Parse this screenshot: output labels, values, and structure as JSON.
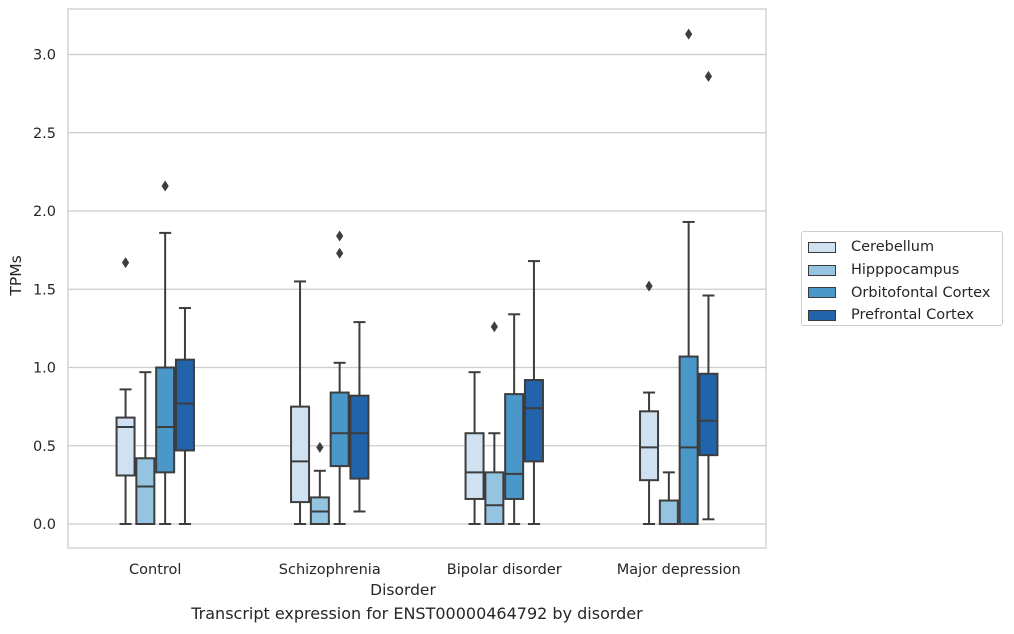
{
  "caption": "Transcript expression for ENST00000464792 by disorder",
  "chart_data": {
    "type": "box",
    "xlabel": "Disorder",
    "ylabel": "TPMs",
    "ylim": [
      -0.15,
      3.3
    ],
    "yticks": [
      "0.0",
      "0.5",
      "1.0",
      "1.5",
      "2.0",
      "2.5",
      "3.0"
    ],
    "grid": true,
    "legend_position": "right",
    "categories": [
      "Control",
      "Schizophrenia",
      "Bipolar disorder",
      "Major depression"
    ],
    "series": [
      {
        "name": "Cerebellum",
        "color": "#d0e1f2",
        "boxes": [
          {
            "whislo": 0.0,
            "q1": 0.31,
            "med": 0.62,
            "q3": 0.68,
            "whishi": 0.86,
            "fliers": [
              1.67
            ]
          },
          {
            "whislo": 0.0,
            "q1": 0.14,
            "med": 0.4,
            "q3": 0.75,
            "whishi": 1.55,
            "fliers": []
          },
          {
            "whislo": 0.0,
            "q1": 0.16,
            "med": 0.33,
            "q3": 0.58,
            "whishi": 0.97,
            "fliers": []
          },
          {
            "whislo": 0.0,
            "q1": 0.28,
            "med": 0.49,
            "q3": 0.72,
            "whishi": 0.84,
            "fliers": [
              1.52
            ]
          }
        ]
      },
      {
        "name": "Hipppocampus",
        "color": "#94c4df",
        "boxes": [
          {
            "whislo": 0.0,
            "q1": 0.0,
            "med": 0.24,
            "q3": 0.42,
            "whishi": 0.97,
            "fliers": []
          },
          {
            "whislo": 0.0,
            "q1": 0.0,
            "med": 0.08,
            "q3": 0.17,
            "whishi": 0.34,
            "fliers": [
              0.49
            ]
          },
          {
            "whislo": 0.0,
            "q1": 0.0,
            "med": 0.12,
            "q3": 0.33,
            "whishi": 0.58,
            "fliers": [
              1.26
            ]
          },
          {
            "whislo": 0.0,
            "q1": 0.0,
            "med": 0.0,
            "q3": 0.15,
            "whishi": 0.33,
            "fliers": []
          }
        ]
      },
      {
        "name": "Orbitofontal Cortex",
        "color": "#4a98c9",
        "boxes": [
          {
            "whislo": 0.0,
            "q1": 0.33,
            "med": 0.62,
            "q3": 1.0,
            "whishi": 1.86,
            "fliers": [
              2.16
            ]
          },
          {
            "whislo": 0.0,
            "q1": 0.37,
            "med": 0.58,
            "q3": 0.84,
            "whishi": 1.03,
            "fliers": [
              1.73,
              1.84
            ]
          },
          {
            "whislo": 0.0,
            "q1": 0.16,
            "med": 0.32,
            "q3": 0.83,
            "whishi": 1.34,
            "fliers": []
          },
          {
            "whislo": 0.0,
            "q1": 0.0,
            "med": 0.49,
            "q3": 1.07,
            "whishi": 1.93,
            "fliers": [
              3.13
            ]
          }
        ]
      },
      {
        "name": "Prefrontal Cortex",
        "color": "#2164ab",
        "boxes": [
          {
            "whislo": 0.0,
            "q1": 0.47,
            "med": 0.77,
            "q3": 1.05,
            "whishi": 1.38,
            "fliers": []
          },
          {
            "whislo": 0.08,
            "q1": 0.29,
            "med": 0.58,
            "q3": 0.82,
            "whishi": 1.29,
            "fliers": []
          },
          {
            "whislo": 0.0,
            "q1": 0.4,
            "med": 0.74,
            "q3": 0.92,
            "whishi": 1.68,
            "fliers": []
          },
          {
            "whislo": 0.03,
            "q1": 0.44,
            "med": 0.66,
            "q3": 0.96,
            "whishi": 1.46,
            "fliers": [
              2.86
            ]
          }
        ]
      }
    ]
  }
}
